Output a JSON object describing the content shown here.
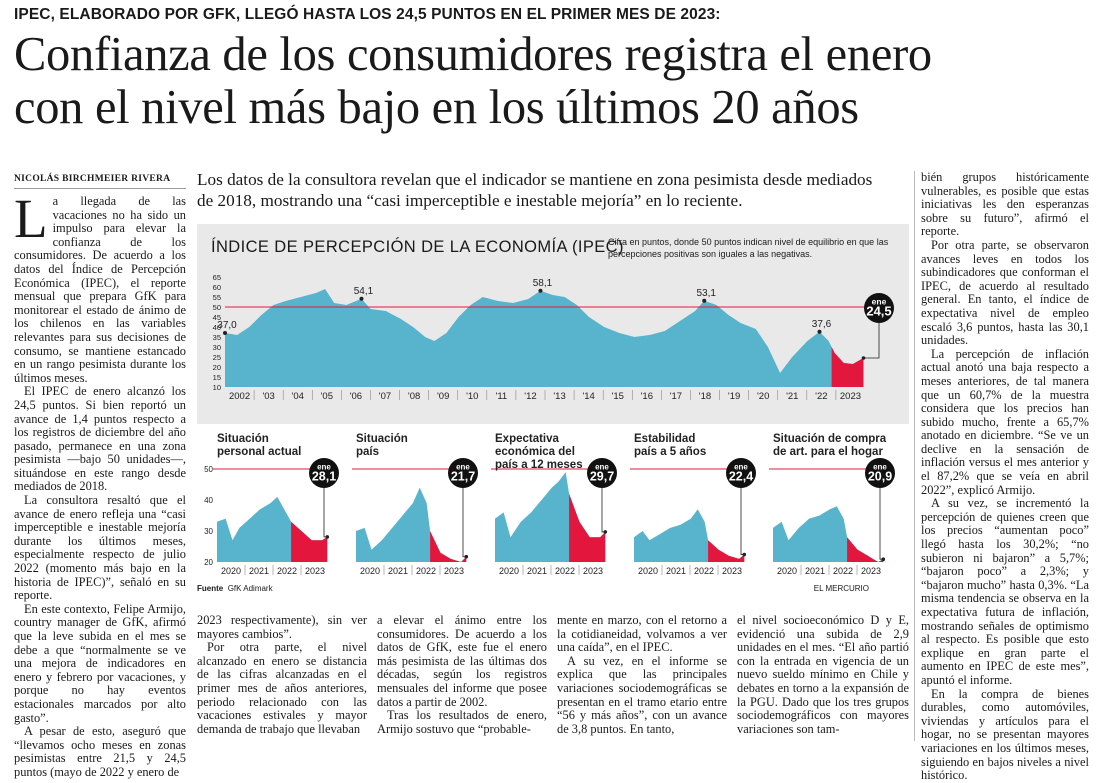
{
  "kicker": "IPEC, ELABORADO POR GFK, LLEGÓ HASTA LOS 24,5 PUNTOS EN EL PRIMER MES DE 2023:",
  "headline": [
    "Confianza de los consumidores registra el enero",
    "con el nivel más bajo en los últimos 20 años"
  ],
  "byline": "NICOLÁS BIRCHMEIER RIVERA",
  "lead": "Los datos de la consultora revelan que el indicador se mantiene en zona pesimista desde mediados de 2018, mostrando una “casi imperceptible e inestable mejoría” en lo reciente.",
  "body": {
    "drop_cap": "L",
    "col1": [
      "a llegada de las vacaciones no ha sido un impulso para elevar la confianza de los consumidores. De acuerdo a los datos del Índice de Percepción Económica (IPEC), el reporte mensual que prepara GfK para monitorear el estado de ánimo de los chilenos en las variables relevantes para sus decisiones de consumo, se mantiene estancado en un rango pesimista durante los últimos meses.",
      "El IPEC de enero alcanzó los 24,5 puntos. Si bien reportó un avance de 1,4 puntos respecto a los registros de diciembre del año pasado, permanece en una zona pesimista —bajo 50 unidades—, situándose en este rango desde mediados de 2018.",
      "La consultora resaltó que el avance de enero refleja una “casi imperceptible e inestable mejoría durante los últimos meses, especialmente respecto de julio 2022 (momento más bajo en la historia de IPEC)”, señaló en su reporte.",
      "En este contexto, Felipe Armijo, country manager de GfK, afirmó que la leve subida en el mes se debe a que “normalmente se ve una mejora de indicadores en enero y febrero por vacaciones, y porque no hay eventos estacionales marcados por alto gasto”.",
      "A pesar de esto, aseguró que “llevamos ocho meses en zonas pesimistas entre 21,5 y 24,5 puntos (mayo de 2022 y enero de"
    ],
    "col2": [
      "2023 respectivamente), sin ver mayores cambios”.",
      "Por otra parte, el nivel alcanzado en enero se distancia de las cifras alcanzadas en el primer mes de años anteriores, periodo relacionado con las vacaciones estivales y mayor demanda de trabajo que llevaban"
    ],
    "col3": [
      "a elevar el ánimo entre los consumidores. De acuerdo a los datos de GfK, este fue el enero más pesimista de las últimas dos décadas, según los registros mensuales del informe que posee datos a partir de 2002.",
      "Tras los resultados de enero, Armijo sostuvo que “probable-"
    ],
    "col4": [
      "mente en marzo, con el retorno a la cotidianeidad, volvamos a ver una caída”, en el IPEC.",
      "A su vez, en el informe se explica que las principales variaciones sociodemográficas se presentan en el tramo etario entre “56 y más años”, con un avance de 3,8 puntos. En tanto,"
    ],
    "col5": [
      "el nivel socioeconómico D y E, evidenció una subida de 2,9 unidades en el mes. “El año partió con la entrada en vigencia de un nuevo sueldo mínimo en Chile y debates en torno a la expansión de la PGU. Dado que los tres grupos sociodemográficos con mayores variaciones son tam-"
    ],
    "col6": [
      "bién grupos históricamente vulnerables, es posible que estas iniciativas les den esperanzas sobre su futuro”, afirmó el reporte.",
      "Por otra parte, se observaron avances leves en todos los subindicadores que conforman el IPEC, de acuerdo al resultado general. En tanto, el índice de expectativa nivel de empleo escaló 3,6 puntos, hasta las 30,1 unidades.",
      "La percepción de inflación actual anotó una baja respecto a meses anteriores, de tal manera que un 60,7% de la muestra considera que los precios han subido mucho, frente a 65,7% anotado en diciembre. “Se ve un declive en la sensación de inflación versus el mes anterior y el 87,2% que se veía en abril 2022”, explicó Armijo.",
      "A su vez, se incrementó la percepción de quienes creen que los precios “aumentan poco” llegó hasta los 30,2%; “no subieron ni bajaron” a 5,7%; “bajaron poco” a 2,3%; y “bajaron mucho” hasta 0,3%. “La misma tendencia se observa en la expectativa futura de inflación, mostrando señales de optimismo al respecto. Es posible que esto explique en gran parte el aumento en IPEC de este mes”, apuntó el informe.",
      "En la compra de bienes durables, como automóviles, viviendas y artículos para el hogar, no se presentan mayores variaciones en los últimos meses, siguiendo en bajos niveles a nivel histórico."
    ]
  },
  "graphic": {
    "title": "ÍNDICE DE PERCEPCIÓN DE LA ECONOMÍA (IPEC)",
    "note": "Cifra en puntos, donde 50 puntos indican nivel de equilibrio en que las percepciones positivas son iguales a las negativas.",
    "source_label": "Fuente",
    "source": "GfK Adimark",
    "credit": "EL MERCURIO",
    "badge_label": "ene",
    "colors": {
      "area": "#58b3cc",
      "highlight": "#e3173e",
      "ref": "#e3173e",
      "panel": "#e9e9e9"
    }
  },
  "chart_data": [
    {
      "type": "area",
      "title": "ÍNDICE DE PERCEPCIÓN DE LA ECONOMÍA (IPEC)",
      "y_ticks": [
        10,
        15,
        20,
        25,
        30,
        35,
        40,
        45,
        50,
        55,
        60,
        65
      ],
      "ylim": [
        10,
        65
      ],
      "reference_line": 50,
      "x_labels": [
        "2002",
        "'03",
        "'04",
        "'05",
        "'06",
        "'07",
        "'08",
        "'09",
        "'10",
        "'11",
        "'12",
        "'13",
        "'14",
        "'15",
        "'16",
        "'17",
        "'18",
        "'19",
        "'20",
        "'21",
        "'22",
        "2023"
      ],
      "x_range": [
        2002,
        2023.1
      ],
      "highlight_from": 2022.0,
      "series": [
        [
          2002,
          37
        ],
        [
          2002.4,
          36
        ],
        [
          2002.8,
          40
        ],
        [
          2003.2,
          46
        ],
        [
          2003.6,
          51
        ],
        [
          2004,
          53
        ],
        [
          2004.5,
          55
        ],
        [
          2005,
          57
        ],
        [
          2005.3,
          59
        ],
        [
          2005.6,
          52
        ],
        [
          2006,
          51
        ],
        [
          2006.5,
          54.1
        ],
        [
          2006.8,
          49
        ],
        [
          2007.3,
          48
        ],
        [
          2007.8,
          44
        ],
        [
          2008.2,
          40
        ],
        [
          2008.6,
          35
        ],
        [
          2008.9,
          33
        ],
        [
          2009.3,
          37
        ],
        [
          2009.7,
          45
        ],
        [
          2010.1,
          51
        ],
        [
          2010.5,
          55
        ],
        [
          2011,
          53
        ],
        [
          2011.5,
          52
        ],
        [
          2012,
          54
        ],
        [
          2012.4,
          58.1
        ],
        [
          2012.8,
          56
        ],
        [
          2013.2,
          55
        ],
        [
          2013.6,
          51
        ],
        [
          2014,
          45
        ],
        [
          2014.5,
          40
        ],
        [
          2015,
          37
        ],
        [
          2015.5,
          35
        ],
        [
          2016,
          36
        ],
        [
          2016.5,
          38
        ],
        [
          2017,
          43
        ],
        [
          2017.5,
          48
        ],
        [
          2017.8,
          53.1
        ],
        [
          2018.2,
          51
        ],
        [
          2018.6,
          46
        ],
        [
          2019,
          42
        ],
        [
          2019.5,
          39
        ],
        [
          2019.9,
          30
        ],
        [
          2020.3,
          17
        ],
        [
          2020.7,
          25
        ],
        [
          2021.2,
          33
        ],
        [
          2021.6,
          37.6
        ],
        [
          2021.9,
          33
        ],
        [
          2022.1,
          27
        ],
        [
          2022.4,
          22
        ],
        [
          2022.7,
          21.5
        ],
        [
          2023.05,
          24.5
        ]
      ],
      "labels": [
        {
          "x": 2002,
          "y": 37,
          "text": "37,0"
        },
        {
          "x": 2006.5,
          "y": 54.1,
          "text": "54,1"
        },
        {
          "x": 2012.4,
          "y": 58.1,
          "text": "58,1"
        },
        {
          "x": 2017.8,
          "y": 53.1,
          "text": "53,1"
        },
        {
          "x": 2021.6,
          "y": 37.6,
          "text": "37,6"
        }
      ],
      "final": {
        "label": "ene",
        "value": "24,5",
        "y": 24.5
      }
    },
    {
      "type": "area",
      "title": "Situación personal actual",
      "ylim": [
        20,
        50
      ],
      "y_ticks": [
        20,
        30,
        40,
        50
      ],
      "reference_line": 50,
      "x_labels": [
        "2020",
        "2021",
        "2022",
        "2023"
      ],
      "x_range": [
        2019.85,
        2023.1
      ],
      "highlight_from": 2022.0,
      "series": [
        [
          2019.85,
          33
        ],
        [
          2020.1,
          34
        ],
        [
          2020.3,
          27
        ],
        [
          2020.5,
          31
        ],
        [
          2020.8,
          34
        ],
        [
          2021.1,
          37
        ],
        [
          2021.4,
          39
        ],
        [
          2021.6,
          41
        ],
        [
          2021.8,
          37
        ],
        [
          2022,
          33
        ],
        [
          2022.3,
          30
        ],
        [
          2022.6,
          27
        ],
        [
          2022.9,
          27
        ],
        [
          2023.05,
          28.1
        ]
      ],
      "final": {
        "label": "ene",
        "value": "28,1",
        "y": 28.1
      }
    },
    {
      "type": "area",
      "title": "Situación país",
      "ylim": [
        20,
        50
      ],
      "y_ticks": [
        20,
        30,
        40,
        50
      ],
      "reference_line": 50,
      "x_labels": [
        "2020",
        "2021",
        "2022",
        "2023"
      ],
      "x_range": [
        2019.85,
        2023.1
      ],
      "highlight_from": 2022.0,
      "series": [
        [
          2019.85,
          30
        ],
        [
          2020.1,
          31
        ],
        [
          2020.3,
          24
        ],
        [
          2020.6,
          27
        ],
        [
          2020.9,
          31
        ],
        [
          2021.2,
          35
        ],
        [
          2021.5,
          39
        ],
        [
          2021.7,
          44
        ],
        [
          2021.9,
          39
        ],
        [
          2022,
          30
        ],
        [
          2022.3,
          23
        ],
        [
          2022.6,
          21
        ],
        [
          2022.9,
          20
        ],
        [
          2023.05,
          21.7
        ]
      ],
      "final": {
        "label": "ene",
        "value": "21,7",
        "y": 21.7
      }
    },
    {
      "type": "area",
      "title": "Expectativa económica del país a 12 meses",
      "ylim": [
        20,
        50
      ],
      "y_ticks": [
        20,
        30,
        40,
        50
      ],
      "reference_line": 50,
      "x_labels": [
        "2020",
        "2021",
        "2022",
        "2023"
      ],
      "x_range": [
        2019.85,
        2023.1
      ],
      "highlight_from": 2022.0,
      "series": [
        [
          2019.85,
          34
        ],
        [
          2020.1,
          36
        ],
        [
          2020.3,
          28
        ],
        [
          2020.6,
          33
        ],
        [
          2020.9,
          36
        ],
        [
          2021.2,
          40
        ],
        [
          2021.5,
          44
        ],
        [
          2021.7,
          46
        ],
        [
          2021.9,
          49
        ],
        [
          2022,
          42
        ],
        [
          2022.3,
          33
        ],
        [
          2022.6,
          28
        ],
        [
          2022.9,
          28
        ],
        [
          2023.05,
          29.7
        ]
      ],
      "final": {
        "label": "ene",
        "value": "29,7",
        "y": 29.7
      }
    },
    {
      "type": "area",
      "title": "Estabilidad país a 5 años",
      "ylim": [
        20,
        50
      ],
      "y_ticks": [
        20,
        30,
        40,
        50
      ],
      "reference_line": 50,
      "x_labels": [
        "2020",
        "2021",
        "2022",
        "2023"
      ],
      "x_range": [
        2019.85,
        2023.1
      ],
      "highlight_from": 2022.0,
      "series": [
        [
          2019.85,
          28
        ],
        [
          2020.1,
          30
        ],
        [
          2020.3,
          27
        ],
        [
          2020.6,
          29
        ],
        [
          2020.9,
          31
        ],
        [
          2021.2,
          32
        ],
        [
          2021.5,
          34
        ],
        [
          2021.7,
          37
        ],
        [
          2021.9,
          33
        ],
        [
          2022,
          27
        ],
        [
          2022.3,
          24
        ],
        [
          2022.6,
          22
        ],
        [
          2022.9,
          21
        ],
        [
          2023.05,
          22.4
        ]
      ],
      "final": {
        "label": "ene",
        "value": "22,4",
        "y": 22.4
      }
    },
    {
      "type": "area",
      "title": "Situación de compra de art. para el hogar",
      "ylim": [
        20,
        50
      ],
      "y_ticks": [
        20,
        30,
        40,
        50
      ],
      "reference_line": 50,
      "x_labels": [
        "2020",
        "2021",
        "2022",
        "2023"
      ],
      "x_range": [
        2019.85,
        2023.1
      ],
      "highlight_from": 2022.0,
      "series": [
        [
          2019.85,
          31
        ],
        [
          2020.1,
          33
        ],
        [
          2020.3,
          27
        ],
        [
          2020.6,
          31
        ],
        [
          2020.9,
          34
        ],
        [
          2021.2,
          35
        ],
        [
          2021.5,
          37
        ],
        [
          2021.7,
          38
        ],
        [
          2021.9,
          34
        ],
        [
          2022,
          28
        ],
        [
          2022.3,
          24
        ],
        [
          2022.6,
          22
        ],
        [
          2022.9,
          20
        ],
        [
          2023.05,
          20.9
        ]
      ],
      "final": {
        "label": "ene",
        "value": "20,9",
        "y": 20.9
      }
    }
  ]
}
